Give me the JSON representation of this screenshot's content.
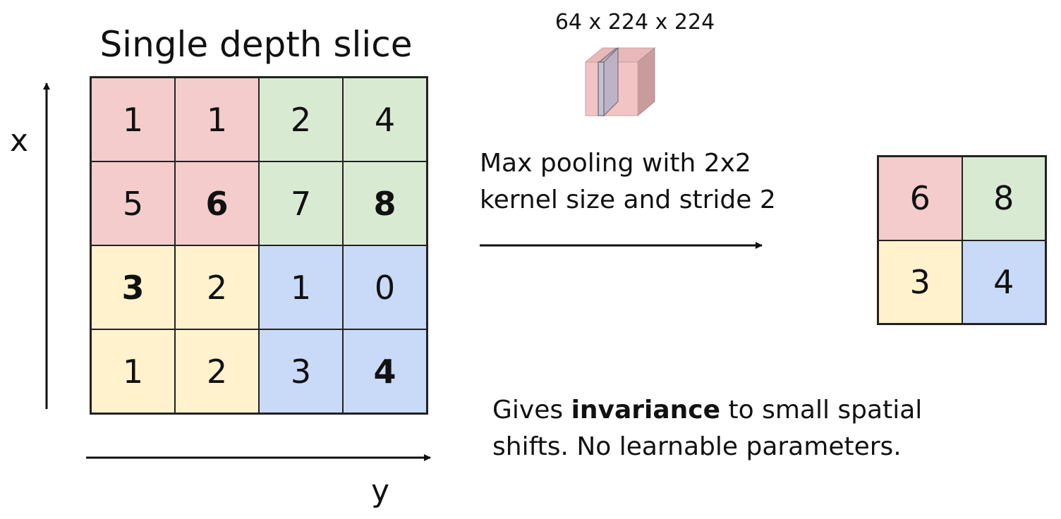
{
  "title": "Single depth slice",
  "axes": {
    "x_label": "x",
    "y_label": "y"
  },
  "input_grid": [
    [
      {
        "v": "1",
        "c": "red"
      },
      {
        "v": "1",
        "c": "red"
      },
      {
        "v": "2",
        "c": "green"
      },
      {
        "v": "4",
        "c": "green"
      }
    ],
    [
      {
        "v": "5",
        "c": "red"
      },
      {
        "v": "6",
        "c": "red",
        "b": true
      },
      {
        "v": "7",
        "c": "green"
      },
      {
        "v": "8",
        "c": "green",
        "b": true
      }
    ],
    [
      {
        "v": "3",
        "c": "yellow",
        "b": true
      },
      {
        "v": "2",
        "c": "yellow"
      },
      {
        "v": "1",
        "c": "blue"
      },
      {
        "v": "0",
        "c": "blue"
      }
    ],
    [
      {
        "v": "1",
        "c": "yellow"
      },
      {
        "v": "2",
        "c": "yellow"
      },
      {
        "v": "3",
        "c": "blue"
      },
      {
        "v": "4",
        "c": "blue",
        "b": true
      }
    ]
  ],
  "output_grid": [
    [
      {
        "v": "6",
        "c": "red"
      },
      {
        "v": "8",
        "c": "green"
      }
    ],
    [
      {
        "v": "3",
        "c": "yellow"
      },
      {
        "v": "4",
        "c": "blue"
      }
    ]
  ],
  "colors": {
    "red": "#f4cccc",
    "green": "#d9ead3",
    "yellow": "#fff2cc",
    "blue": "#c9daf8"
  },
  "volume_dims": "64 x 224 x 224",
  "pooling": {
    "line1": "Max pooling with 2x2",
    "line2": "kernel size and stride 2"
  },
  "note": {
    "line1_pre": "Gives ",
    "line1_bold": "invariance",
    "line1_post": " to small spatial",
    "line2": "shifts. No learnable parameters."
  }
}
